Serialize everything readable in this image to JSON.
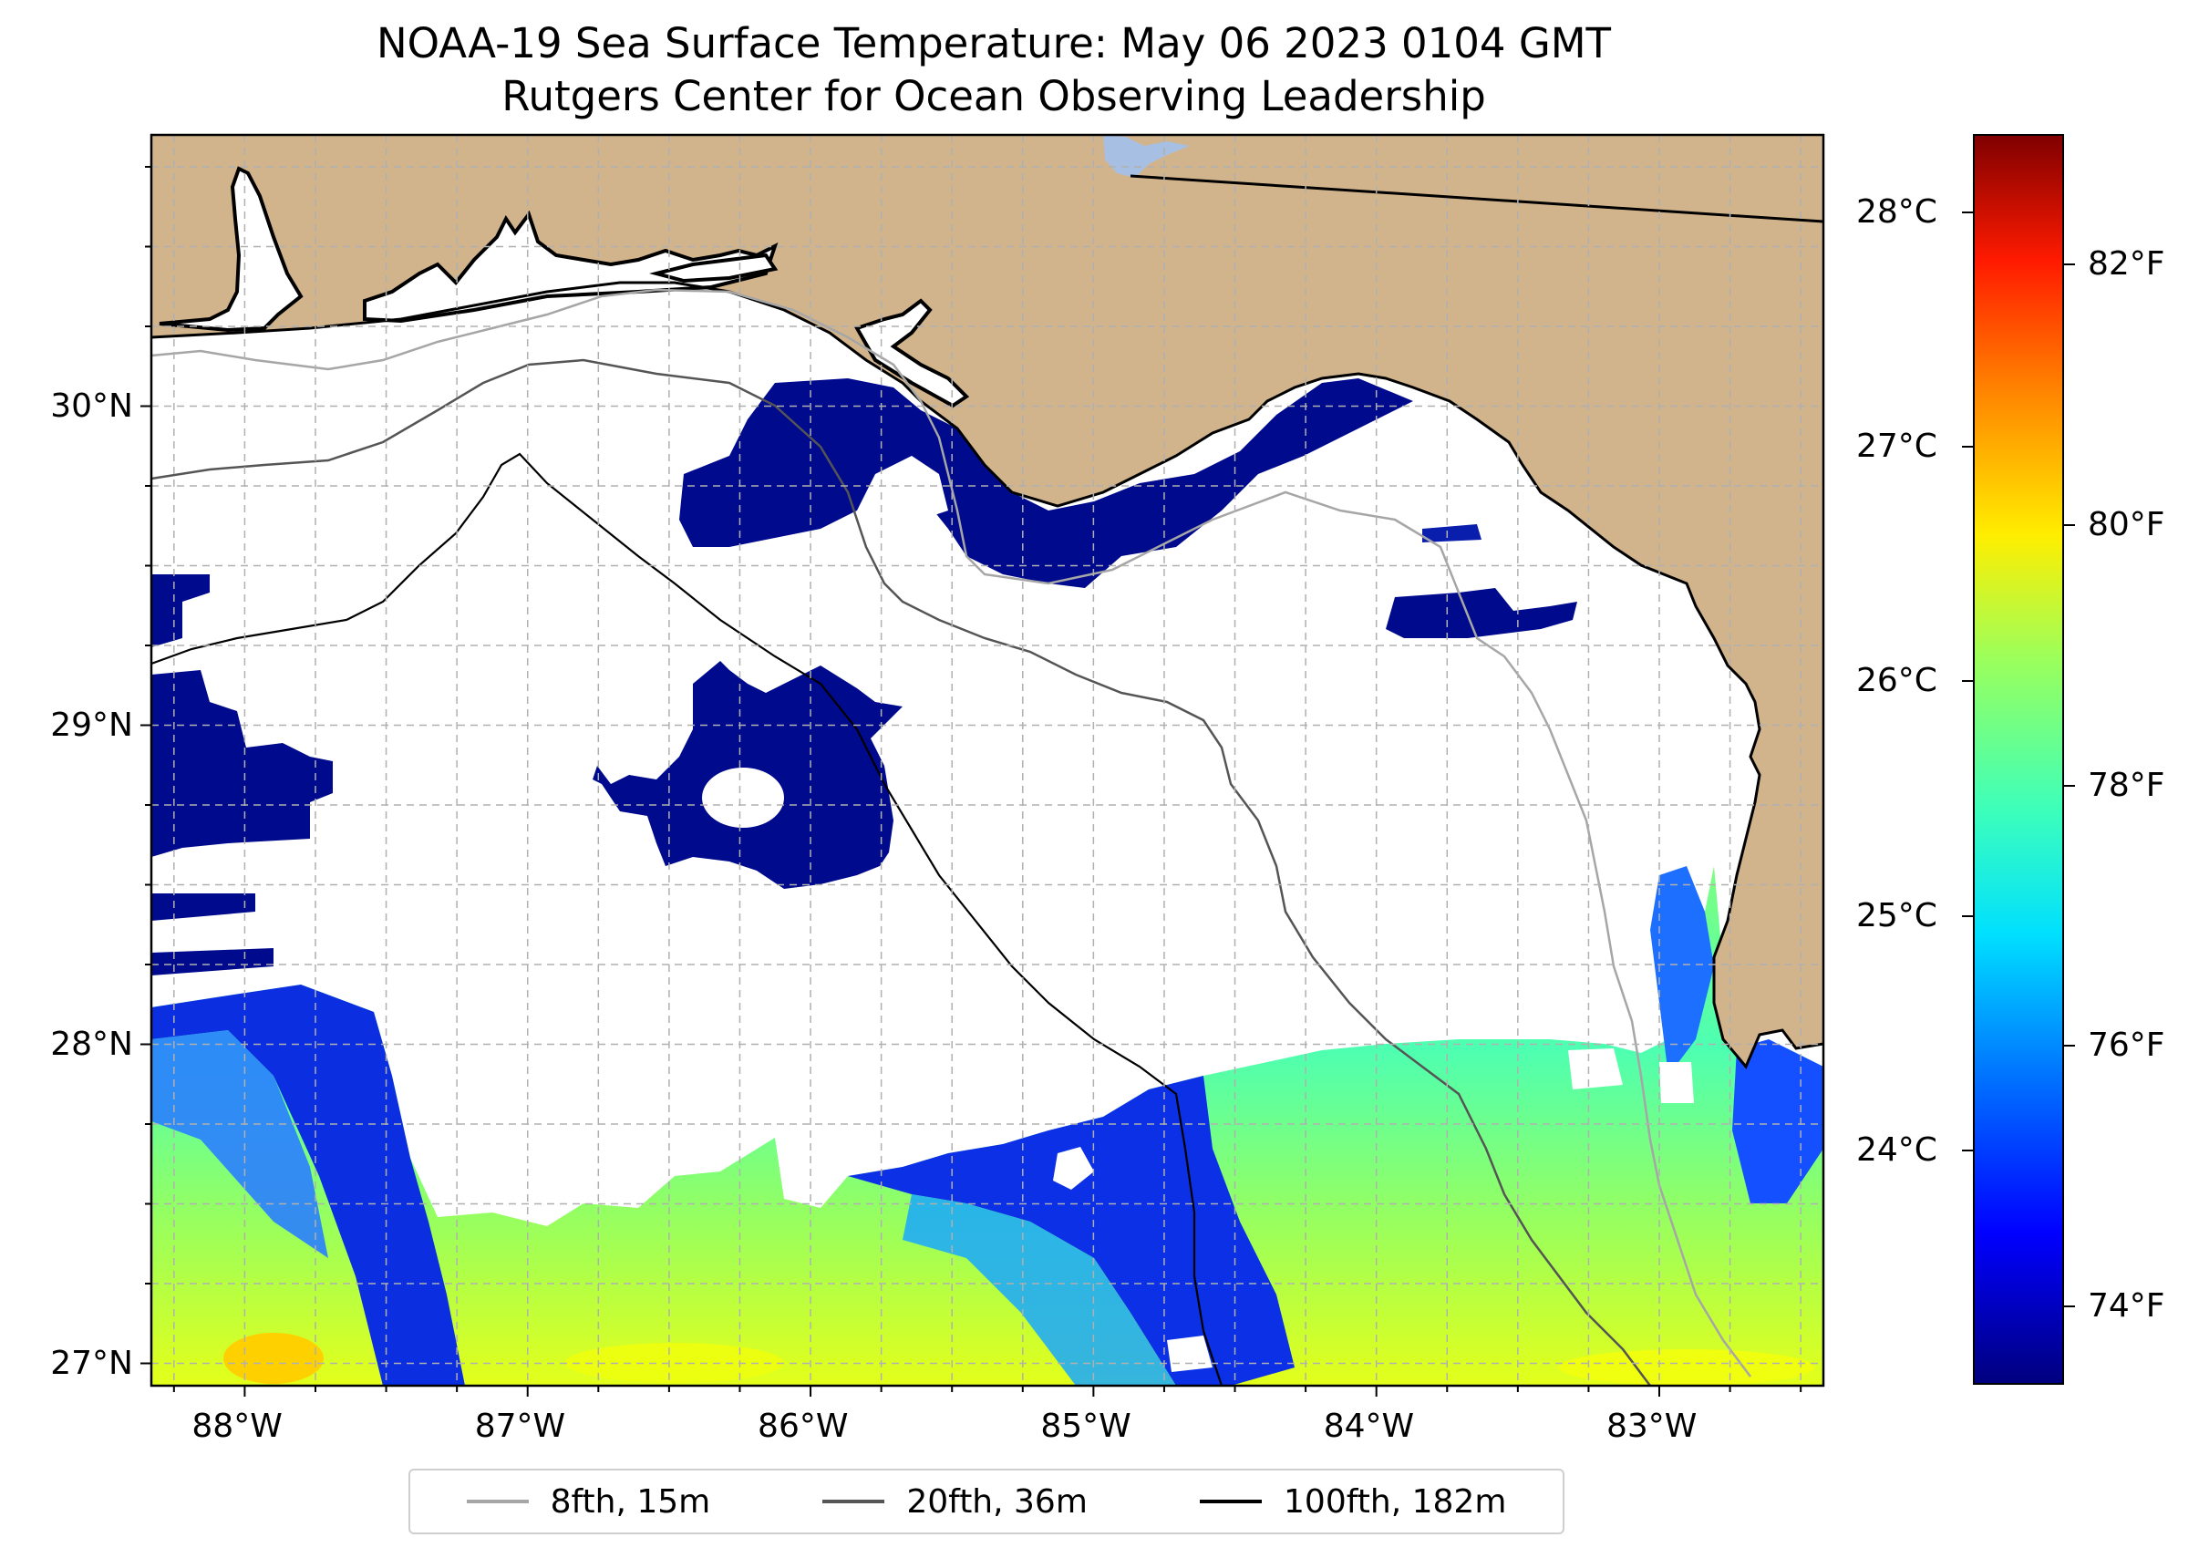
{
  "title": {
    "line1": "NOAA-19 Sea Surface Temperature: May 06 2023 0104 GMT",
    "line2": "Rutgers Center for Ocean Observing Leadership"
  },
  "map": {
    "lon_range": [
      -88.33,
      -82.42
    ],
    "lat_range": [
      26.93,
      30.85
    ],
    "lon_ticks": [
      -88,
      -87,
      -86,
      -85,
      -84,
      -83
    ],
    "lon_tick_labels": [
      "88°W",
      "87°W",
      "86°W",
      "85°W",
      "84°W",
      "83°W"
    ],
    "lat_ticks": [
      27,
      28,
      29,
      30
    ],
    "lat_tick_labels": [
      "27°N",
      "28°N",
      "29°N",
      "30°N"
    ],
    "land_color": "#d2b48c",
    "ocean_nodata_color": "#ffffff",
    "grid": true
  },
  "legend": {
    "items": [
      {
        "label": "8fth, 15m",
        "color": "#a6a6a6"
      },
      {
        "label": "20fth, 36m",
        "color": "#555555"
      },
      {
        "label": "100fth, 182m",
        "color": "#000000"
      }
    ]
  },
  "colorbar": {
    "colormap": "jet",
    "celsius_ticks": [
      24,
      25,
      26,
      27,
      28
    ],
    "celsius_labels": [
      "24°C",
      "25°C",
      "26°C",
      "27°C",
      "28°C"
    ],
    "fahrenheit_ticks": [
      74,
      76,
      78,
      80,
      82
    ],
    "fahrenheit_labels": [
      "74°F",
      "76°F",
      "78°F",
      "80°F",
      "82°F"
    ],
    "range_f": [
      73.4,
      83.0
    ]
  }
}
